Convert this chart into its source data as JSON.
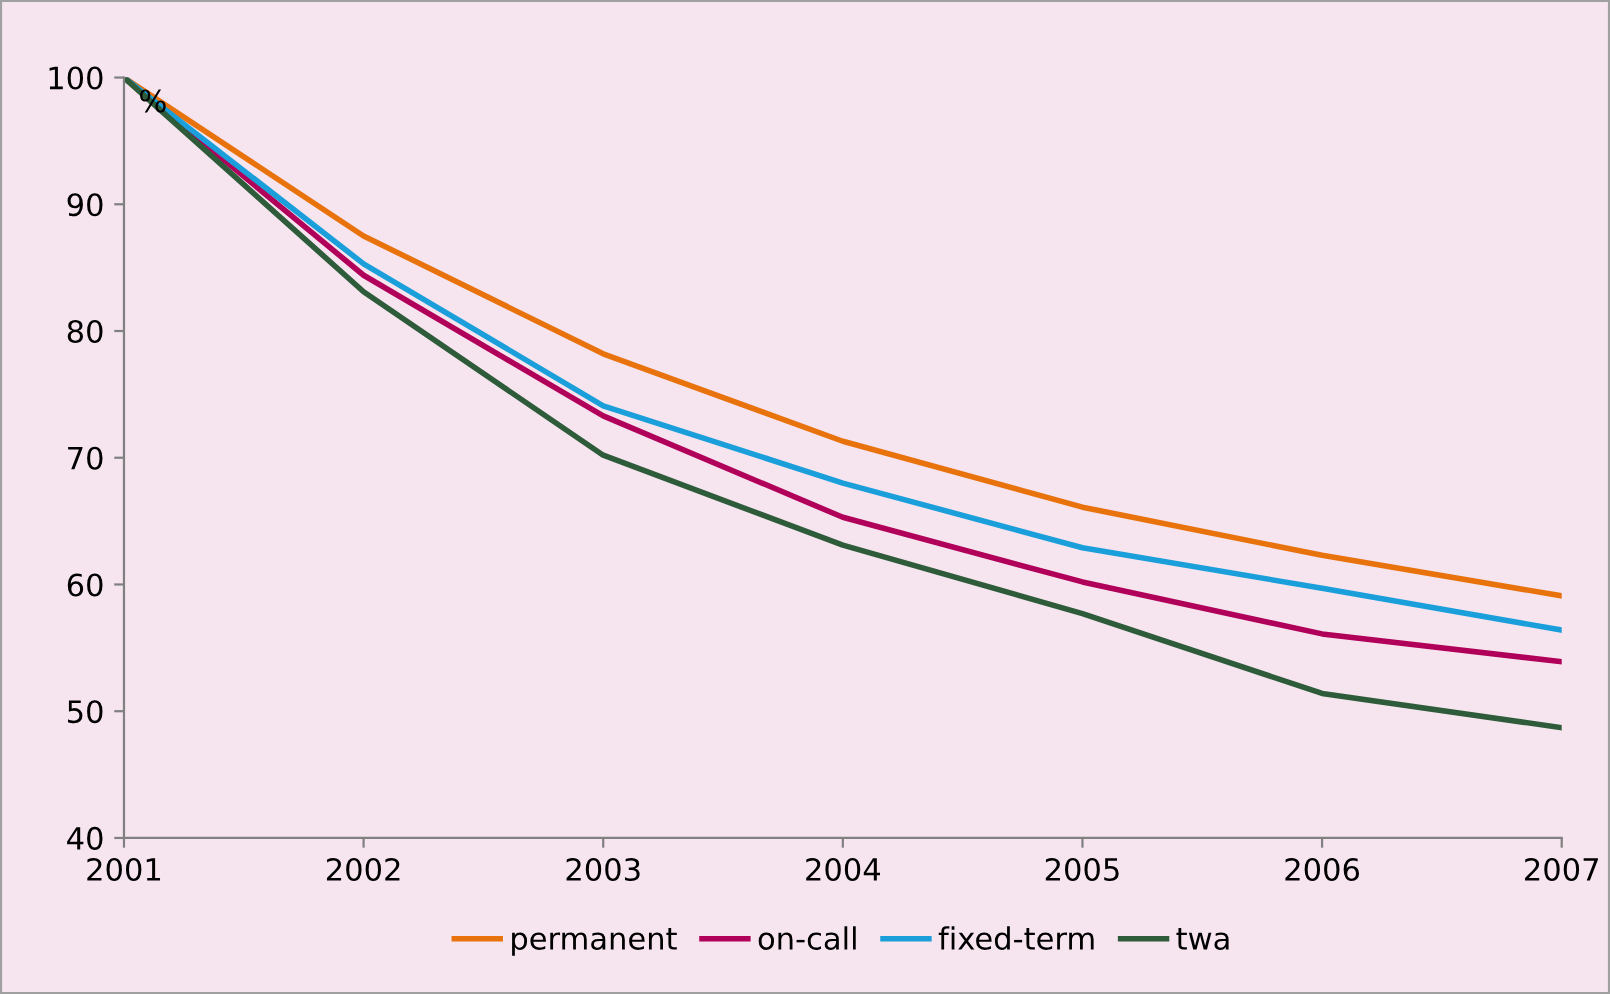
{
  "chart_data": {
    "type": "line",
    "ylabel": "%",
    "x": [
      2001,
      2002,
      2003,
      2004,
      2005,
      2006,
      2007
    ],
    "xlim": [
      2001,
      2007
    ],
    "xticks": [
      2001,
      2002,
      2003,
      2004,
      2005,
      2006,
      2007
    ],
    "ylim": [
      40,
      100
    ],
    "yticks": [
      40,
      50,
      60,
      70,
      80,
      90,
      100
    ],
    "grid": false,
    "legend": "bottom",
    "marker": "none",
    "line_style": "solid",
    "series": [
      {
        "name": "permanent",
        "color": "#e8720c",
        "values": [
          100,
          87.5,
          78.2,
          71.3,
          66.1,
          62.3,
          59.1
        ]
      },
      {
        "name": "on-call",
        "color": "#b0005a",
        "values": [
          100,
          84.4,
          73.3,
          65.3,
          60.2,
          56.1,
          53.9
        ]
      },
      {
        "name": "fixed-term",
        "color": "#1a9fdb",
        "values": [
          100,
          85.3,
          74.1,
          68.0,
          62.9,
          59.7,
          56.4
        ]
      },
      {
        "name": "twa",
        "color": "#2e5b3a",
        "values": [
          100,
          83.1,
          70.2,
          63.1,
          57.7,
          51.4,
          48.7
        ]
      }
    ]
  }
}
